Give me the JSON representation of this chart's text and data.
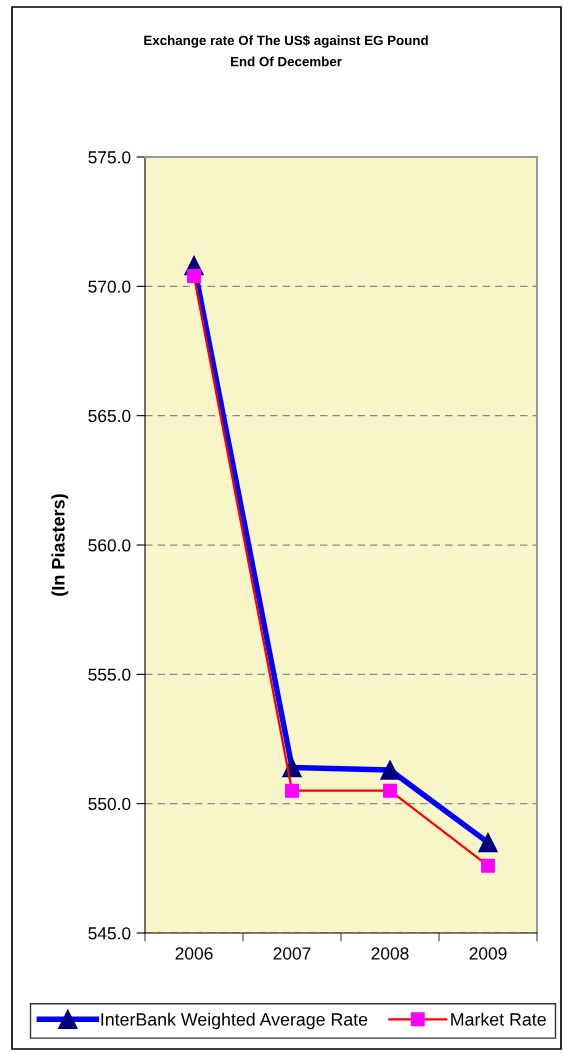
{
  "chart_data": {
    "type": "line",
    "title": "Exchange rate Of The US$ against EG Pound\nEnd Of December",
    "ylabel": "(In Piasters)",
    "categories": [
      "2006",
      "2007",
      "2008",
      "2009"
    ],
    "series": [
      {
        "name": "InterBank Weighted Average Rate",
        "color": "#0000ff",
        "marker": "triangle",
        "values": [
          570.8,
          551.4,
          551.3,
          548.5
        ]
      },
      {
        "name": "Market Rate",
        "color": "#ff0000",
        "marker": "square",
        "values": [
          570.4,
          550.5,
          550.5,
          547.6
        ]
      }
    ],
    "ylim": [
      545,
      575
    ],
    "yticks": [
      {
        "value": 545,
        "label": "545.0"
      },
      {
        "value": 550,
        "label": "550.0"
      },
      {
        "value": 555,
        "label": "555.0"
      },
      {
        "value": 560,
        "label": "560.0"
      },
      {
        "value": 565,
        "label": "565.0"
      },
      {
        "value": 570,
        "label": "570.0"
      },
      {
        "value": 575,
        "label": "575.0"
      }
    ],
    "grid": "y",
    "legend": "bottom",
    "line_style": "solid"
  }
}
